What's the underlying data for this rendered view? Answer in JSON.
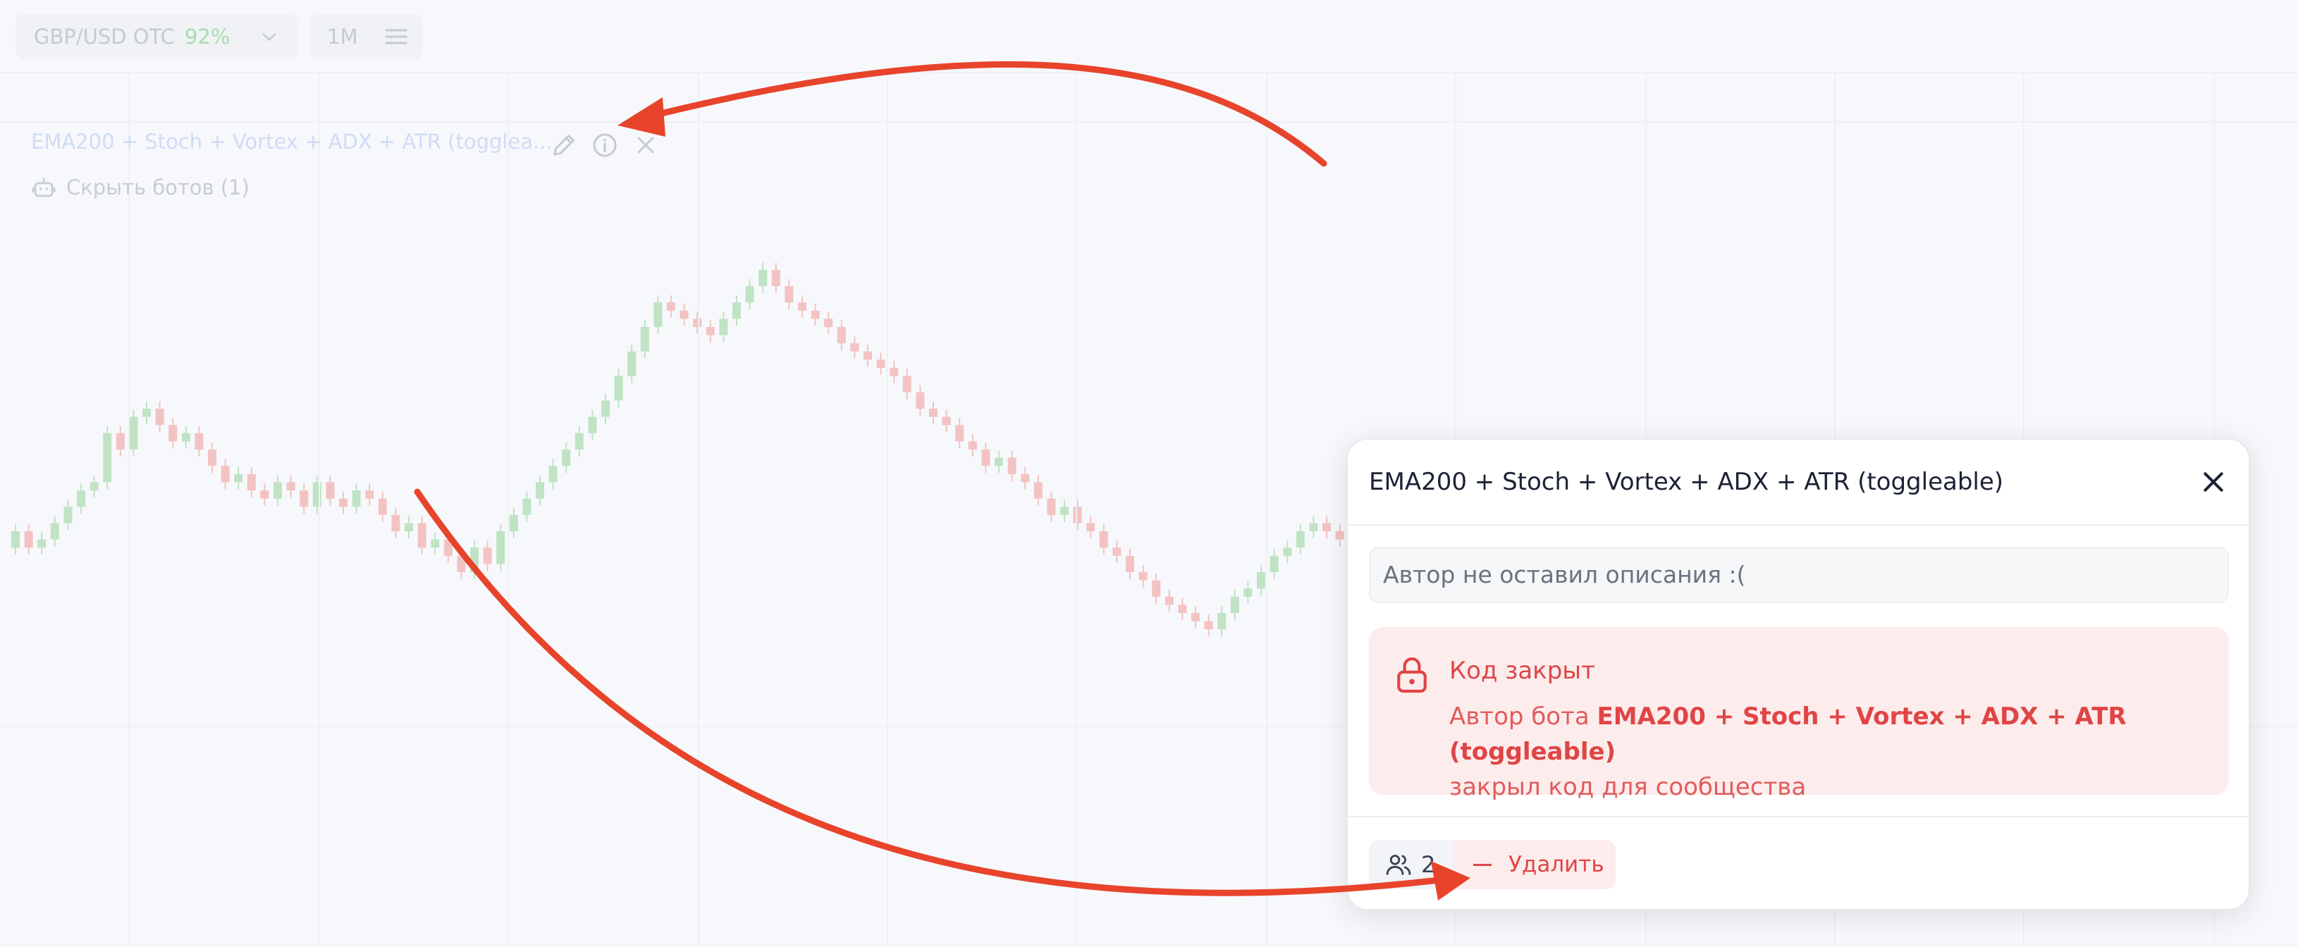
{
  "topbar": {
    "pair": "GBP/USD OTC",
    "payout": "92%",
    "timeframe": "1M"
  },
  "bot_panel": {
    "bot_name": "EMA200 + Stoch + Vortex + ADX + ATR (togglea...",
    "hide_bots_label": "Скрыть ботов (1)",
    "icons": [
      "pencil-icon",
      "info-icon",
      "close-icon",
      "robot-icon"
    ]
  },
  "modal": {
    "title": "EMA200 + Stoch + Vortex + ADX + ATR (toggleable)",
    "description": "Автор не оставил описания :(",
    "locked": {
      "title": "Код закрыт",
      "text_before": "Автор бота ",
      "bot_name": "EMA200 + Stoch + Vortex + ADX + ATR (toggleable)",
      "text_after": "закрыл код для сообщества"
    },
    "users_count": "2",
    "delete_label": "Удалить"
  },
  "colors": {
    "bull_candle": "#bfe3c4",
    "bear_candle": "#f3c3c3",
    "annotation_arrow": "#e8432b",
    "danger": "#e04545"
  },
  "chart_data": {
    "type": "candlestick",
    "closes": [
      60,
      58,
      59,
      61,
      63,
      65,
      66,
      72,
      70,
      74,
      75,
      73,
      71,
      72,
      70,
      68,
      66,
      67,
      65,
      64,
      66,
      65,
      63,
      66,
      64,
      63,
      65,
      64,
      62,
      60,
      61,
      58,
      59,
      57,
      55,
      58,
      56,
      60,
      62,
      64,
      66,
      68,
      70,
      72,
      74,
      76,
      79,
      82,
      85,
      88,
      87,
      86,
      85,
      84,
      86,
      88,
      90,
      92,
      90,
      88,
      87,
      86,
      85,
      83,
      82,
      81,
      80,
      79,
      77,
      75,
      74,
      73,
      71,
      70,
      68,
      69,
      67,
      66,
      64,
      62,
      63,
      61,
      60,
      58,
      57,
      55,
      54,
      52,
      51,
      50,
      49,
      48,
      50,
      52,
      53,
      55,
      57,
      58,
      60,
      61,
      60,
      59
    ]
  }
}
